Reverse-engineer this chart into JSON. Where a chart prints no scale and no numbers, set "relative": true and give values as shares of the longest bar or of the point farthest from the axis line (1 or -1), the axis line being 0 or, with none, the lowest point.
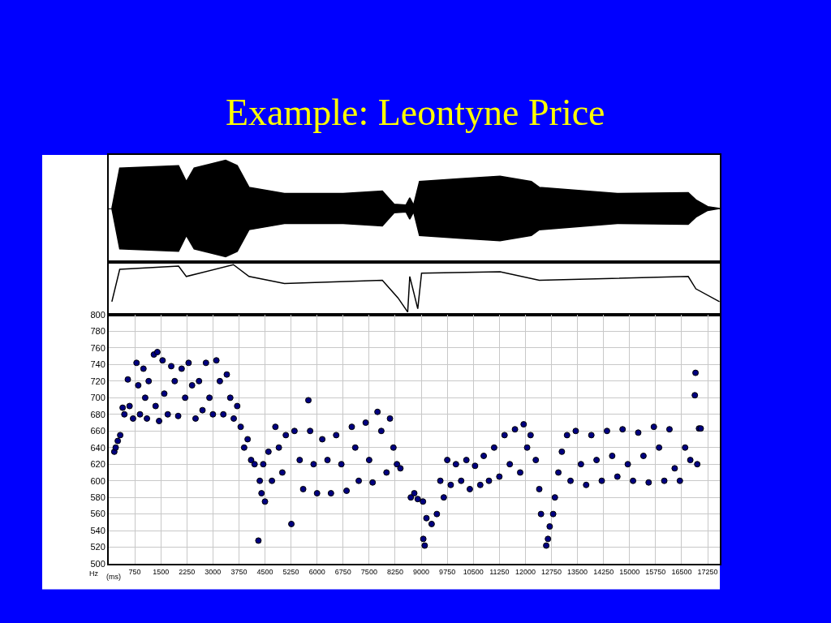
{
  "chart_data": [
    {
      "type": "area",
      "title": "Example: Leontyne Price",
      "relative": true,
      "tick_labels": false,
      "xlim": [
        0,
        17600
      ],
      "x": [
        90,
        316,
        2010,
        2235,
        2460,
        3365,
        3700,
        4040,
        5060,
        6750,
        7880,
        8220,
        8560,
        8670,
        8780,
        8950,
        10140,
        11270,
        12170,
        12400,
        14650,
        16690,
        16910,
        17250,
        17590
      ],
      "series": [
        {
          "color": "#000000",
          "values": [
            0,
            0.84,
            0.89,
            0.56,
            0.84,
            1,
            0.89,
            0.44,
            0.31,
            0.31,
            0.36,
            0.09,
            0.07,
            0.22,
            0.07,
            0.56,
            0.62,
            0.67,
            0.56,
            0.44,
            0.31,
            0.33,
            0.18,
            0.04,
            0
          ]
        },
        {
          "color": "#000000",
          "values": [
            0,
            -0.84,
            -0.89,
            -0.56,
            -0.84,
            -1,
            -0.89,
            -0.44,
            -0.31,
            -0.31,
            -0.36,
            -0.09,
            -0.07,
            -0.22,
            -0.07,
            -0.56,
            -0.62,
            -0.67,
            -0.56,
            -0.44,
            -0.31,
            -0.33,
            -0.18,
            -0.04,
            0
          ]
        }
      ]
    },
    {
      "type": "line",
      "relative": true,
      "tick_labels": false,
      "xlim": [
        0,
        17600
      ],
      "x": [
        90,
        316,
        2010,
        2235,
        3590,
        4040,
        5060,
        7880,
        8330,
        8610,
        8670,
        8900,
        9010,
        11270,
        12400,
        16690,
        16910,
        17590
      ],
      "series": [
        {
          "color": "#000000",
          "values": [
            0.22,
            0.9,
            0.97,
            0.75,
            1,
            0.75,
            0.6,
            0.67,
            0.3,
            0,
            0.75,
            0.07,
            0.82,
            0.85,
            0.67,
            0.75,
            0.49,
            0.22
          ]
        }
      ]
    },
    {
      "type": "scatter",
      "xlabel": "(ms)",
      "ylabel": "Hz",
      "xlim": [
        0,
        17600
      ],
      "ylim": [
        500,
        800
      ],
      "grid": true,
      "marker": "circle",
      "xticks": [
        750,
        1500,
        2250,
        3000,
        3750,
        4500,
        5250,
        6000,
        6750,
        7500,
        8250,
        9000,
        9750,
        10500,
        11250,
        12000,
        12750,
        13500,
        14250,
        15000,
        15750,
        16500,
        17250
      ],
      "yticks": [
        500,
        520,
        540,
        560,
        580,
        600,
        620,
        640,
        660,
        680,
        700,
        720,
        740,
        760,
        780,
        800
      ],
      "series": [
        {
          "color": "#000080",
          "x": [
            160,
            200,
            260,
            330,
            400,
            450,
            550,
            600,
            700,
            800,
            850,
            900,
            1000,
            1050,
            1100,
            1150,
            1300,
            1350,
            1400,
            1450,
            1550,
            1600,
            1700,
            1800,
            1900,
            2000,
            2100,
            2200,
            2300,
            2400,
            2500,
            2600,
            2700,
            2800,
            2900,
            3000,
            3100,
            3200,
            3300,
            3400,
            3500,
            3600,
            3700,
            3800,
            3900,
            4000,
            4100,
            4200,
            4310,
            4350,
            4400,
            4450,
            4500,
            4600,
            4700,
            4800,
            4900,
            5000,
            5100,
            5260,
            5350,
            5500,
            5600,
            5750,
            5800,
            5900,
            6000,
            6150,
            6300,
            6400,
            6550,
            6700,
            6850,
            7000,
            7100,
            7200,
            7400,
            7500,
            7600,
            7740,
            7850,
            8000,
            8100,
            8200,
            8300,
            8400,
            8700,
            8800,
            8900,
            9050,
            9060,
            9100,
            9150,
            9300,
            9450,
            9550,
            9650,
            9750,
            9850,
            10000,
            10150,
            10300,
            10400,
            10550,
            10700,
            10800,
            10950,
            11100,
            11250,
            11400,
            11550,
            11700,
            11850,
            11950,
            12050,
            12150,
            12300,
            12400,
            12450,
            12600,
            12650,
            12700,
            12800,
            12850,
            12950,
            13050,
            13200,
            13300,
            13450,
            13600,
            13750,
            13900,
            14050,
            14200,
            14350,
            14500,
            14650,
            14800,
            14950,
            15100,
            15250,
            15400,
            15550,
            15700,
            15850,
            16000,
            16150,
            16300,
            16450,
            16600,
            16750,
            16900,
            16880,
            17000,
            17050,
            16950
          ],
          "values": [
            635,
            640,
            648,
            655,
            688,
            680,
            722,
            690,
            675,
            742,
            715,
            680,
            735,
            700,
            675,
            720,
            752,
            690,
            755,
            672,
            745,
            705,
            680,
            738,
            720,
            678,
            735,
            700,
            742,
            715,
            675,
            720,
            685,
            742,
            700,
            680,
            745,
            720,
            680,
            728,
            700,
            675,
            690,
            665,
            640,
            650,
            625,
            620,
            528,
            600,
            585,
            620,
            575,
            635,
            600,
            665,
            640,
            610,
            655,
            548,
            660,
            625,
            590,
            697,
            660,
            620,
            585,
            650,
            625,
            585,
            655,
            620,
            588,
            665,
            640,
            600,
            670,
            625,
            598,
            683,
            660,
            610,
            675,
            640,
            620,
            615,
            580,
            585,
            578,
            575,
            530,
            522,
            555,
            548,
            560,
            600,
            580,
            625,
            595,
            620,
            600,
            625,
            590,
            618,
            595,
            630,
            600,
            640,
            605,
            655,
            620,
            662,
            610,
            668,
            640,
            655,
            625,
            590,
            560,
            522,
            530,
            545,
            560,
            580,
            610,
            635,
            655,
            600,
            660,
            620,
            595,
            655,
            625,
            600,
            660,
            630,
            605,
            662,
            620,
            600,
            658,
            630,
            598,
            665,
            640,
            600,
            662,
            615,
            600,
            640,
            625,
            730,
            703,
            663,
            663,
            620
          ]
        }
      ]
    }
  ]
}
